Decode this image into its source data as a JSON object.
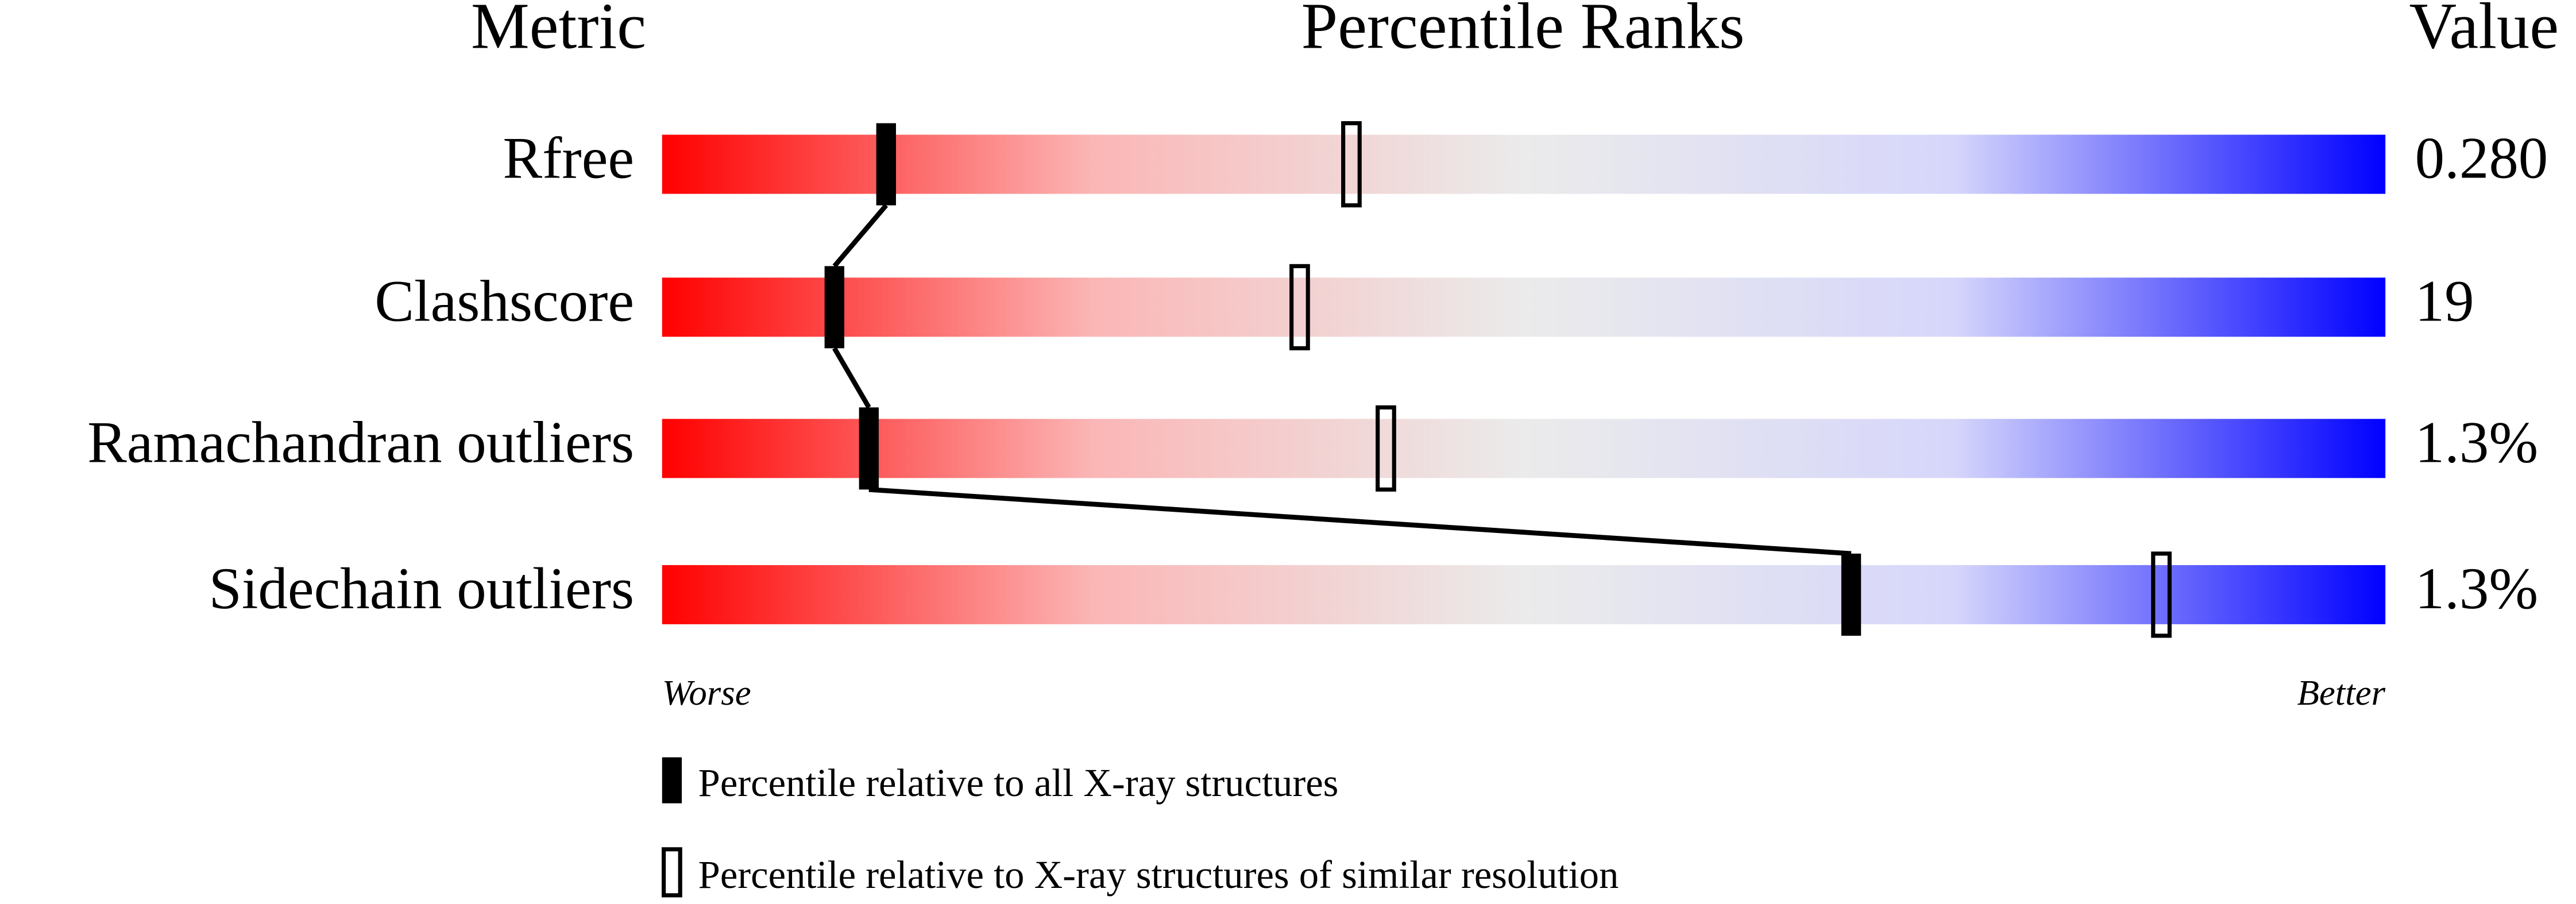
{
  "chart_data": {
    "type": "percentile",
    "headers": [
      "Metric",
      "Percentile Ranks",
      "Value"
    ],
    "categories": [
      "Rfree",
      "Clashscore",
      "Ramachandran outliers",
      "Sidechain outliers"
    ],
    "metric_values": [
      "0.280",
      "19",
      "1.3%",
      "1.3%"
    ],
    "series": [
      {
        "name": "Percentile relative to all X-ray structures",
        "color": "#000000",
        "values": [
          13,
          10,
          12,
          69
        ]
      },
      {
        "name": "Percentile relative to X-ray structures of similar resolution",
        "color": "#000000",
        "values": [
          40,
          37,
          42,
          87
        ]
      }
    ],
    "xlim": [
      0,
      100
    ],
    "axis_labels": [
      "Worse",
      "Better"
    ]
  }
}
